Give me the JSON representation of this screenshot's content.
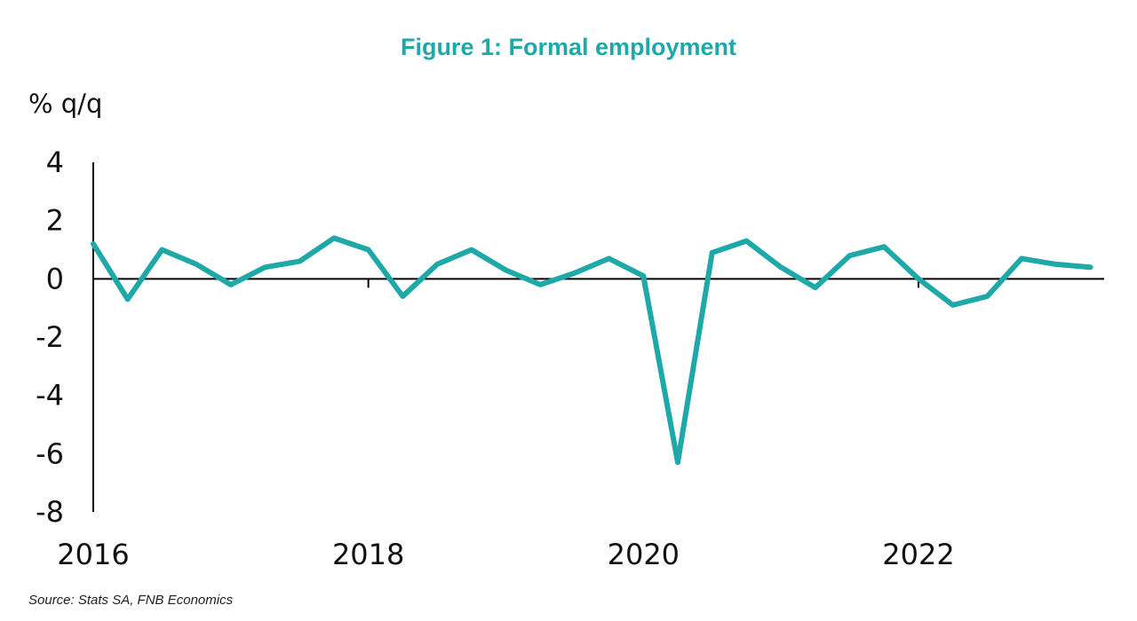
{
  "chart_data": {
    "type": "line",
    "title": "Figure 1: Formal employment",
    "ylabel": "% q/q",
    "xlabel": "",
    "ylim": [
      -8,
      4
    ],
    "yticks": [
      4,
      2,
      0,
      -2,
      -4,
      -6,
      -8
    ],
    "xticks": [
      2016,
      2018,
      2020,
      2022
    ],
    "xlim": [
      2016,
      2023.35
    ],
    "series": [
      {
        "color": "#1fa8a8",
        "x": [
          2016.0,
          2016.25,
          2016.5,
          2016.75,
          2017.0,
          2017.25,
          2017.5,
          2017.75,
          2018.0,
          2018.25,
          2018.5,
          2018.75,
          2019.0,
          2019.25,
          2019.5,
          2019.75,
          2020.0,
          2020.25,
          2020.5,
          2020.75,
          2021.0,
          2021.25,
          2021.5,
          2021.75,
          2022.0,
          2022.25,
          2022.5,
          2022.75,
          2023.0,
          2023.25
        ],
        "values": [
          1.2,
          -0.7,
          1.0,
          0.5,
          -0.2,
          0.4,
          0.6,
          1.4,
          1.0,
          -0.6,
          0.5,
          1.0,
          0.3,
          -0.2,
          0.2,
          0.7,
          0.1,
          -6.3,
          0.9,
          1.3,
          0.4,
          -0.3,
          0.8,
          1.1,
          0.0,
          -0.9,
          -0.6,
          0.7,
          0.5,
          0.4
        ]
      }
    ],
    "grid": false,
    "legend": "none"
  },
  "source": "Source: Stats SA, FNB Economics"
}
